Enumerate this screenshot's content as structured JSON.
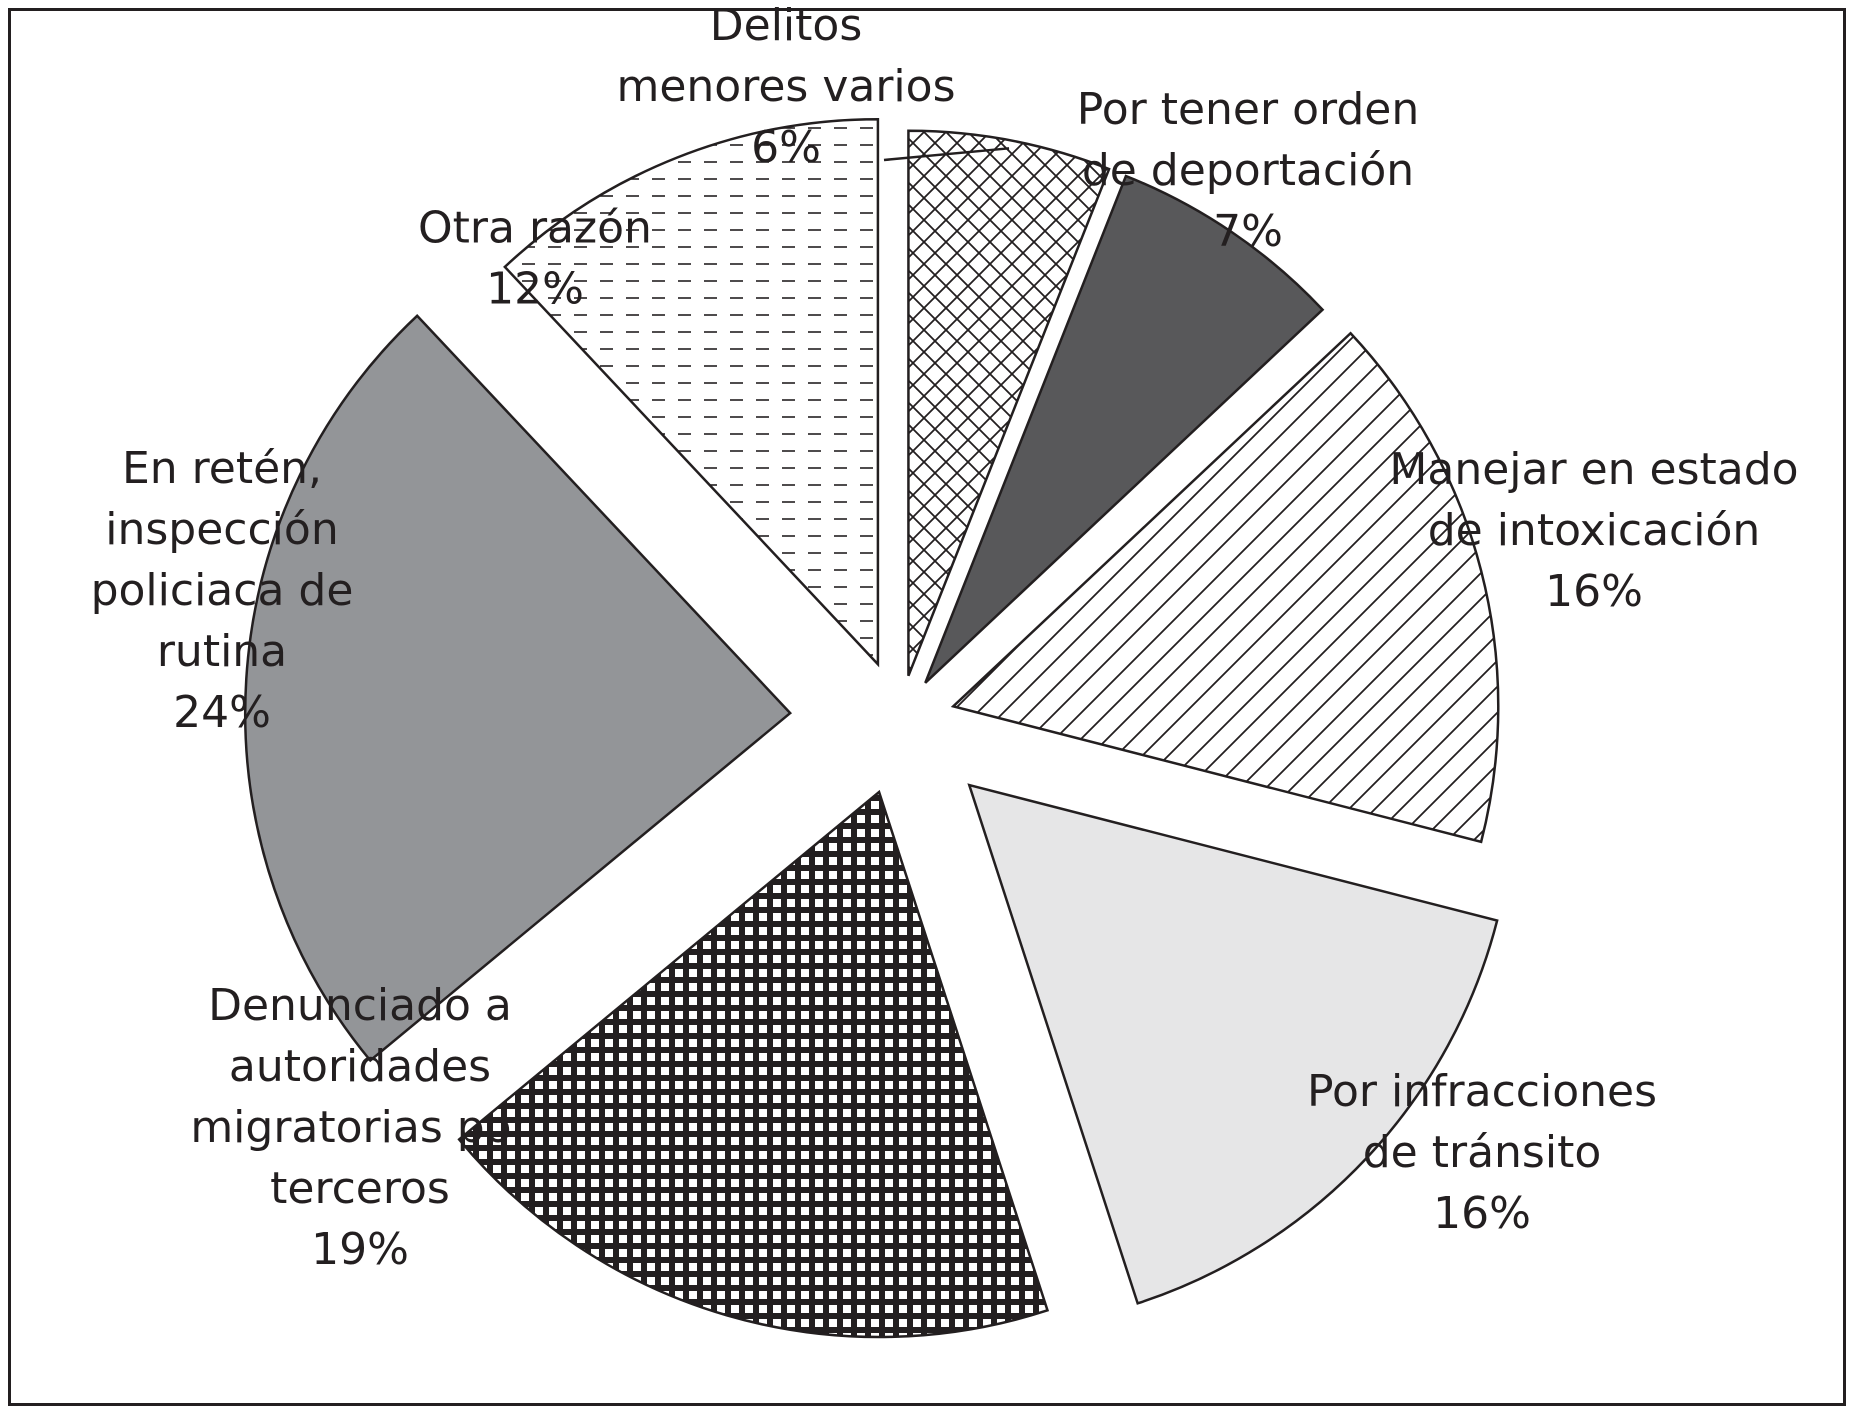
{
  "chart_data": {
    "type": "pie",
    "title": "",
    "exploded": true,
    "slices": [
      {
        "label_lines": [
          "Delitos",
          "menores varios"
        ],
        "value": 6,
        "value_label": "6%",
        "fill": "crosshatch",
        "color": "#ffffff"
      },
      {
        "label_lines": [
          "Por tener orden",
          "de deportación"
        ],
        "value": 7,
        "value_label": "7%",
        "fill": "solid",
        "color": "#58585a"
      },
      {
        "label_lines": [
          "Manejar en estado",
          "de intoxicación"
        ],
        "value": 16,
        "value_label": "16%",
        "fill": "diagonal-lines",
        "color": "#ffffff"
      },
      {
        "label_lines": [
          "Por infracciones",
          "de tránsito"
        ],
        "value": 16,
        "value_label": "16%",
        "fill": "solid",
        "color": "#e6e6e7"
      },
      {
        "label_lines": [
          "Denunciado a",
          "autoridades",
          "migratorias por",
          "terceros"
        ],
        "value": 19,
        "value_label": "19%",
        "fill": "checker",
        "color": "#231f20"
      },
      {
        "label_lines": [
          "En retén,",
          "inspección",
          "policiaca de",
          "rutina"
        ],
        "value": 24,
        "value_label": "24%",
        "fill": "solid",
        "color": "#939598"
      },
      {
        "label_lines": [
          "Otra razón"
        ],
        "value": 12,
        "value_label": "12%",
        "fill": "dashes",
        "color": "#ffffff"
      }
    ]
  }
}
